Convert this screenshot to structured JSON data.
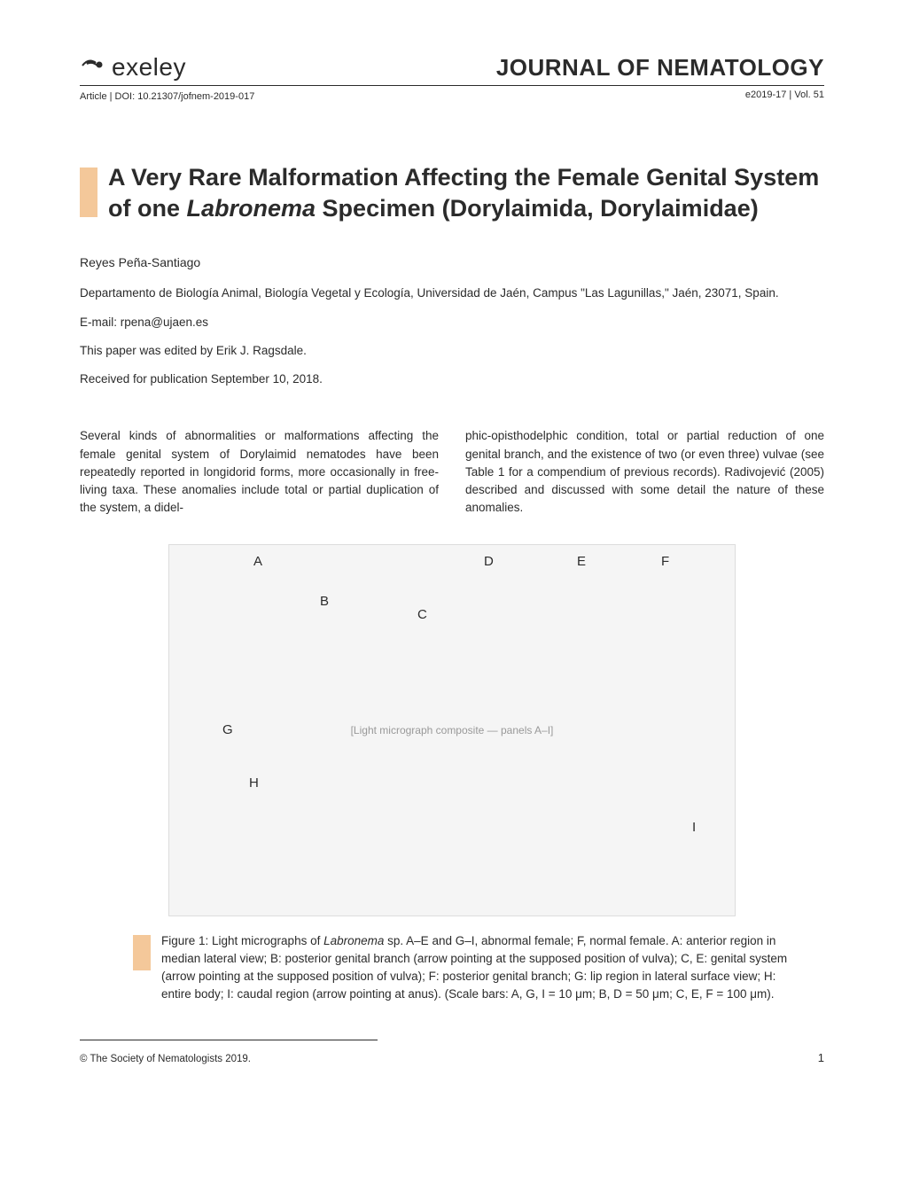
{
  "header": {
    "logo_text": "exeley",
    "doi_prefix": "Article | DOI: ",
    "doi": "10.21307/jofnem-2019-017",
    "journal_title": "JOURNAL OF NEMATOLOGY",
    "issue": "e2019-17 | Vol. 51"
  },
  "article": {
    "title_html": "A Very Rare Malformation Affecting the Female Genital System of one <em>Labronema</em> Specimen (Dorylaimida, Dorylaimidae)",
    "author": "Reyes Peña-Santiago",
    "affiliation": "Departamento de Biología Animal, Biología Vegetal y Ecología, Universidad de Jaén, Campus \"Las Lagunillas,\" Jaén, 23071, Spain.",
    "email_label": "E-mail: ",
    "email": "rpena@ujaen.es",
    "editor_line": "This paper was edited by Erik J. Ragsdale.",
    "received_line": "Received for publication September 10, 2018."
  },
  "body": {
    "col1": "Several kinds of abnormalities or malformations affecting the female genital system of Dorylaimid nematodes have been repeatedly reported in longidorid forms, more occasionally in free-living taxa. These anomalies include total or partial duplication of the system, a didel-",
    "col2": "phic-opisthodelphic condition, total or partial reduction of one genital branch, and the existence of two (or even three) vulvae (see Table 1 for a compendium of previous records). Radivojević (2005) described and discussed with some detail the nature of these anomalies."
  },
  "figure": {
    "labels": [
      "A",
      "B",
      "C",
      "D",
      "E",
      "F",
      "G",
      "H",
      "I"
    ],
    "placeholder": "[Light micrograph composite — panels A–I]",
    "caption_html": "Figure 1: Light micrographs of <em>Labronema</em> sp. A–E and G–I, abnormal female; F, normal female. A: anterior region in median lateral view; B: posterior genital branch (arrow pointing at the supposed position of vulva); C, E: genital system (arrow pointing at the supposed position of vulva); F: posterior genital branch; G: lip region in lateral surface view; H: entire body; I: caudal region (arrow pointing at anus). (Scale bars: A, G, I = 10 μm; B, D = 50 μm; C, E, F = 100 μm)."
  },
  "footer": {
    "copyright": "© The Society of Nematologists 2019.",
    "page": "1"
  },
  "colors": {
    "accent": "#f4c89a",
    "text": "#2b2b2b",
    "rule": "#2b2b2b"
  }
}
